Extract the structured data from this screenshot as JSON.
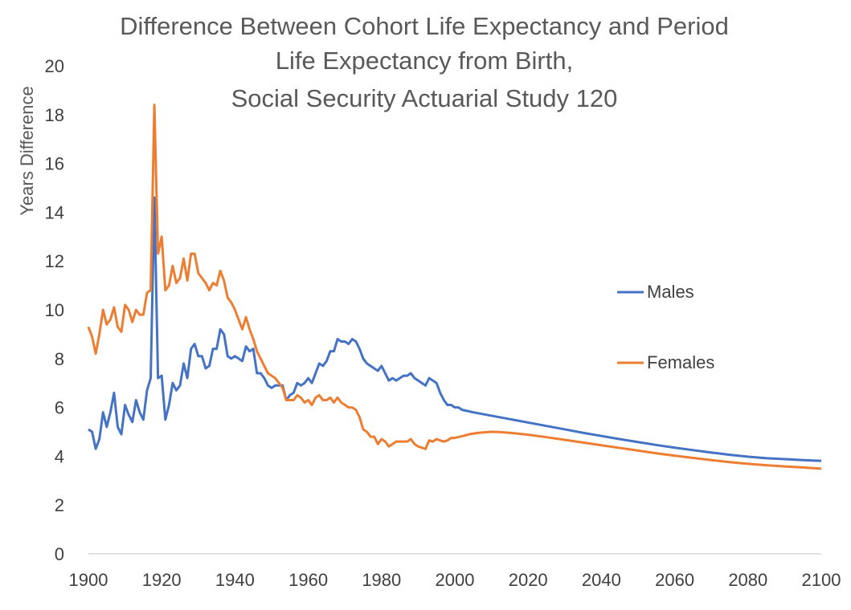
{
  "chart_data": {
    "type": "line",
    "title_lines": [
      "Difference Between Cohort Life Expectancy and Period",
      "Life Expectancy from Birth,",
      "Social Security Actuarial Study 120"
    ],
    "xlabel": "",
    "ylabel": "Years Difference",
    "xlim": [
      1900,
      2100
    ],
    "ylim": [
      0,
      20
    ],
    "x_ticks": [
      1900,
      1920,
      1940,
      1960,
      1980,
      2000,
      2020,
      2040,
      2060,
      2080,
      2100
    ],
    "y_ticks": [
      0,
      2,
      4,
      6,
      8,
      10,
      12,
      14,
      16,
      18,
      20
    ],
    "grid": false,
    "legend_position": "right",
    "series": [
      {
        "name": "Males",
        "color": "#4472C4",
        "points": [
          [
            1900,
            5.1
          ],
          [
            1901,
            5.0
          ],
          [
            1902,
            4.3
          ],
          [
            1903,
            4.7
          ],
          [
            1904,
            5.8
          ],
          [
            1905,
            5.2
          ],
          [
            1906,
            5.8
          ],
          [
            1907,
            6.6
          ],
          [
            1908,
            5.2
          ],
          [
            1909,
            4.9
          ],
          [
            1910,
            6.1
          ],
          [
            1911,
            5.7
          ],
          [
            1912,
            5.4
          ],
          [
            1913,
            6.3
          ],
          [
            1914,
            5.8
          ],
          [
            1915,
            5.5
          ],
          [
            1916,
            6.7
          ],
          [
            1917,
            7.2
          ],
          [
            1918,
            14.6
          ],
          [
            1919,
            7.2
          ],
          [
            1920,
            7.3
          ],
          [
            1921,
            5.5
          ],
          [
            1922,
            6.1
          ],
          [
            1923,
            7.0
          ],
          [
            1924,
            6.7
          ],
          [
            1925,
            6.9
          ],
          [
            1926,
            7.8
          ],
          [
            1927,
            7.2
          ],
          [
            1928,
            8.4
          ],
          [
            1929,
            8.6
          ],
          [
            1930,
            8.1
          ],
          [
            1931,
            8.1
          ],
          [
            1932,
            7.6
          ],
          [
            1933,
            7.7
          ],
          [
            1934,
            8.4
          ],
          [
            1935,
            8.4
          ],
          [
            1936,
            9.2
          ],
          [
            1937,
            9.0
          ],
          [
            1938,
            8.1
          ],
          [
            1939,
            8.0
          ],
          [
            1940,
            8.1
          ],
          [
            1941,
            8.0
          ],
          [
            1942,
            7.9
          ],
          [
            1943,
            8.5
          ],
          [
            1944,
            8.3
          ],
          [
            1945,
            8.4
          ],
          [
            1946,
            7.4
          ],
          [
            1947,
            7.4
          ],
          [
            1948,
            7.2
          ],
          [
            1949,
            6.9
          ],
          [
            1950,
            6.8
          ],
          [
            1951,
            6.9
          ],
          [
            1952,
            6.9
          ],
          [
            1953,
            6.9
          ],
          [
            1954,
            6.3
          ],
          [
            1955,
            6.5
          ],
          [
            1956,
            6.6
          ],
          [
            1957,
            7.0
          ],
          [
            1958,
            6.9
          ],
          [
            1959,
            7.0
          ],
          [
            1960,
            7.2
          ],
          [
            1961,
            7.0
          ],
          [
            1962,
            7.4
          ],
          [
            1963,
            7.8
          ],
          [
            1964,
            7.7
          ],
          [
            1965,
            7.9
          ],
          [
            1966,
            8.3
          ],
          [
            1967,
            8.3
          ],
          [
            1968,
            8.8
          ],
          [
            1969,
            8.7
          ],
          [
            1970,
            8.7
          ],
          [
            1971,
            8.6
          ],
          [
            1972,
            8.8
          ],
          [
            1973,
            8.7
          ],
          [
            1974,
            8.4
          ],
          [
            1975,
            8.0
          ],
          [
            1976,
            7.8
          ],
          [
            1977,
            7.7
          ],
          [
            1978,
            7.6
          ],
          [
            1979,
            7.5
          ],
          [
            1980,
            7.7
          ],
          [
            1981,
            7.4
          ],
          [
            1982,
            7.1
          ],
          [
            1983,
            7.2
          ],
          [
            1984,
            7.1
          ],
          [
            1985,
            7.2
          ],
          [
            1986,
            7.3
          ],
          [
            1987,
            7.3
          ],
          [
            1988,
            7.4
          ],
          [
            1989,
            7.2
          ],
          [
            1990,
            7.1
          ],
          [
            1991,
            7.0
          ],
          [
            1992,
            6.9
          ],
          [
            1993,
            7.2
          ],
          [
            1994,
            7.1
          ],
          [
            1995,
            7.0
          ],
          [
            1996,
            6.6
          ],
          [
            1997,
            6.3
          ],
          [
            1998,
            6.1
          ],
          [
            1999,
            6.1
          ],
          [
            2000,
            6.0
          ],
          [
            2001,
            6.0
          ],
          [
            2002,
            5.9
          ],
          [
            2005,
            5.8
          ],
          [
            2010,
            5.66
          ],
          [
            2015,
            5.52
          ],
          [
            2020,
            5.38
          ],
          [
            2025,
            5.24
          ],
          [
            2030,
            5.1
          ],
          [
            2035,
            4.96
          ],
          [
            2040,
            4.83
          ],
          [
            2045,
            4.7
          ],
          [
            2050,
            4.58
          ],
          [
            2055,
            4.46
          ],
          [
            2060,
            4.35
          ],
          [
            2065,
            4.25
          ],
          [
            2070,
            4.15
          ],
          [
            2075,
            4.06
          ],
          [
            2080,
            3.98
          ],
          [
            2085,
            3.92
          ],
          [
            2090,
            3.88
          ],
          [
            2095,
            3.84
          ],
          [
            2100,
            3.81
          ]
        ]
      },
      {
        "name": "Females",
        "color": "#ED7D31",
        "points": [
          [
            1900,
            9.3
          ],
          [
            1901,
            8.9
          ],
          [
            1902,
            8.2
          ],
          [
            1903,
            9.0
          ],
          [
            1904,
            10.0
          ],
          [
            1905,
            9.4
          ],
          [
            1906,
            9.6
          ],
          [
            1907,
            10.1
          ],
          [
            1908,
            9.3
          ],
          [
            1909,
            9.1
          ],
          [
            1910,
            10.2
          ],
          [
            1911,
            10.0
          ],
          [
            1912,
            9.5
          ],
          [
            1913,
            10.0
          ],
          [
            1914,
            9.8
          ],
          [
            1915,
            9.8
          ],
          [
            1916,
            10.7
          ],
          [
            1917,
            10.8
          ],
          [
            1918,
            18.4
          ],
          [
            1919,
            12.3
          ],
          [
            1920,
            13.0
          ],
          [
            1921,
            10.8
          ],
          [
            1922,
            11.0
          ],
          [
            1923,
            11.8
          ],
          [
            1924,
            11.1
          ],
          [
            1925,
            11.3
          ],
          [
            1926,
            12.1
          ],
          [
            1927,
            11.2
          ],
          [
            1928,
            12.3
          ],
          [
            1929,
            12.3
          ],
          [
            1930,
            11.5
          ],
          [
            1931,
            11.3
          ],
          [
            1932,
            11.1
          ],
          [
            1933,
            10.8
          ],
          [
            1934,
            11.1
          ],
          [
            1935,
            11.0
          ],
          [
            1936,
            11.6
          ],
          [
            1937,
            11.2
          ],
          [
            1938,
            10.5
          ],
          [
            1939,
            10.3
          ],
          [
            1940,
            10.0
          ],
          [
            1941,
            9.6
          ],
          [
            1942,
            9.2
          ],
          [
            1943,
            9.7
          ],
          [
            1944,
            9.2
          ],
          [
            1945,
            8.8
          ],
          [
            1946,
            8.3
          ],
          [
            1947,
            8.0
          ],
          [
            1948,
            7.7
          ],
          [
            1949,
            7.4
          ],
          [
            1950,
            7.3
          ],
          [
            1951,
            7.2
          ],
          [
            1952,
            7.0
          ],
          [
            1953,
            6.8
          ],
          [
            1954,
            6.3
          ],
          [
            1955,
            6.3
          ],
          [
            1956,
            6.3
          ],
          [
            1957,
            6.5
          ],
          [
            1958,
            6.4
          ],
          [
            1959,
            6.2
          ],
          [
            1960,
            6.3
          ],
          [
            1961,
            6.1
          ],
          [
            1962,
            6.4
          ],
          [
            1963,
            6.5
          ],
          [
            1964,
            6.3
          ],
          [
            1965,
            6.3
          ],
          [
            1966,
            6.4
          ],
          [
            1967,
            6.2
          ],
          [
            1968,
            6.4
          ],
          [
            1969,
            6.2
          ],
          [
            1970,
            6.1
          ],
          [
            1971,
            6.0
          ],
          [
            1972,
            6.0
          ],
          [
            1973,
            5.9
          ],
          [
            1974,
            5.6
          ],
          [
            1975,
            5.1
          ],
          [
            1976,
            5.0
          ],
          [
            1977,
            4.8
          ],
          [
            1978,
            4.8
          ],
          [
            1979,
            4.5
          ],
          [
            1980,
            4.7
          ],
          [
            1981,
            4.6
          ],
          [
            1982,
            4.4
          ],
          [
            1983,
            4.5
          ],
          [
            1984,
            4.6
          ],
          [
            1985,
            4.6
          ],
          [
            1986,
            4.6
          ],
          [
            1987,
            4.6
          ],
          [
            1988,
            4.7
          ],
          [
            1989,
            4.5
          ],
          [
            1990,
            4.4
          ],
          [
            1991,
            4.35
          ],
          [
            1992,
            4.3
          ],
          [
            1993,
            4.65
          ],
          [
            1994,
            4.6
          ],
          [
            1995,
            4.7
          ],
          [
            1996,
            4.65
          ],
          [
            1997,
            4.6
          ],
          [
            1998,
            4.65
          ],
          [
            1999,
            4.75
          ],
          [
            2000,
            4.75
          ],
          [
            2002,
            4.82
          ],
          [
            2004,
            4.9
          ],
          [
            2006,
            4.95
          ],
          [
            2008,
            4.98
          ],
          [
            2010,
            5.0
          ],
          [
            2012,
            4.99
          ],
          [
            2015,
            4.96
          ],
          [
            2020,
            4.88
          ],
          [
            2025,
            4.78
          ],
          [
            2030,
            4.67
          ],
          [
            2035,
            4.56
          ],
          [
            2040,
            4.45
          ],
          [
            2045,
            4.34
          ],
          [
            2050,
            4.23
          ],
          [
            2055,
            4.12
          ],
          [
            2060,
            4.02
          ],
          [
            2065,
            3.93
          ],
          [
            2070,
            3.84
          ],
          [
            2075,
            3.76
          ],
          [
            2080,
            3.69
          ],
          [
            2085,
            3.63
          ],
          [
            2090,
            3.58
          ],
          [
            2095,
            3.54
          ],
          [
            2100,
            3.49
          ]
        ]
      }
    ]
  }
}
